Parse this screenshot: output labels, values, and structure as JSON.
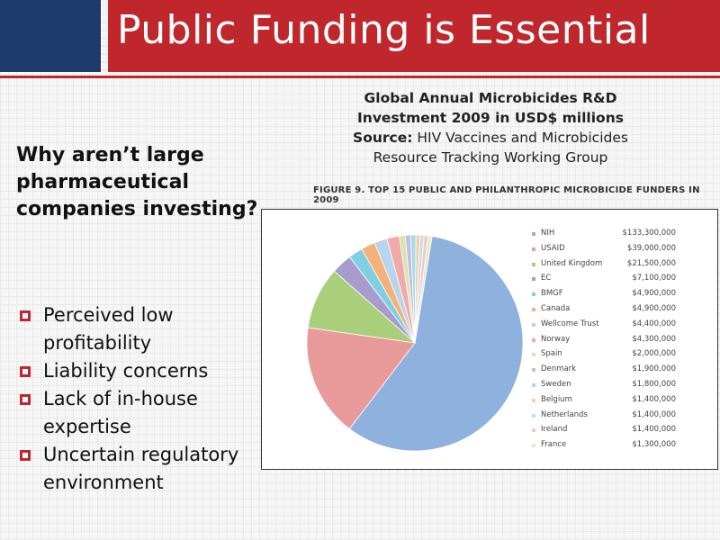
{
  "slide": {
    "title": "Public Funding is Essential",
    "question": "Why aren’t large pharmaceutical companies investing?",
    "bullets": [
      "Perceived low profitability",
      "Liability concerns",
      "Lack of in-house expertise",
      "Uncertain regulatory environment"
    ],
    "caption_bold": "Global Annual Microbicides R&D Investment 2009 in USD$ millions",
    "caption_source_label": "Source:",
    "caption_source": "HIV Vaccines and Microbicides Resource Tracking Working Group",
    "colors": {
      "title_bar": "#c0272d",
      "corner_box": "#1f3a6d"
    }
  },
  "chart_data": {
    "type": "pie",
    "title": "FIGURE 9. TOP 15 PUBLIC AND PHILANTHROPIC MICROBICIDE FUNDERS IN 2009",
    "legend_position": "right",
    "categories": [
      "NIH",
      "USAID",
      "United Kingdom",
      "EC",
      "BMGF",
      "Canada",
      "Wellcome Trust",
      "Norway",
      "Spain",
      "Denmark",
      "Sweden",
      "Belgium",
      "Netherlands",
      "Ireland",
      "France"
    ],
    "values": [
      133300000,
      39000000,
      21500000,
      7100000,
      4900000,
      4900000,
      4400000,
      4300000,
      2000000,
      1900000,
      1800000,
      1400000,
      1400000,
      1400000,
      1300000
    ],
    "value_labels": [
      "$133,300,000",
      "$39,000,000",
      "$21,500,000",
      "$7,100,000",
      "$4,900,000",
      "$4,900,000",
      "$4,400,000",
      "$4,300,000",
      "$2,000,000",
      "$1,900,000",
      "$1,800,000",
      "$1,400,000",
      "$1,400,000",
      "$1,400,000",
      "$1,300,000"
    ],
    "colors": [
      "#8fb1dd",
      "#e89a9a",
      "#a9cf7a",
      "#a79ccc",
      "#7fcfe0",
      "#f4b27a",
      "#b9d4ee",
      "#f2a9a9",
      "#d4e6b0",
      "#c6bde0",
      "#a6dcea",
      "#f7cda4",
      "#c8ddf2",
      "#f5c6c6",
      "#e1edc9"
    ]
  }
}
